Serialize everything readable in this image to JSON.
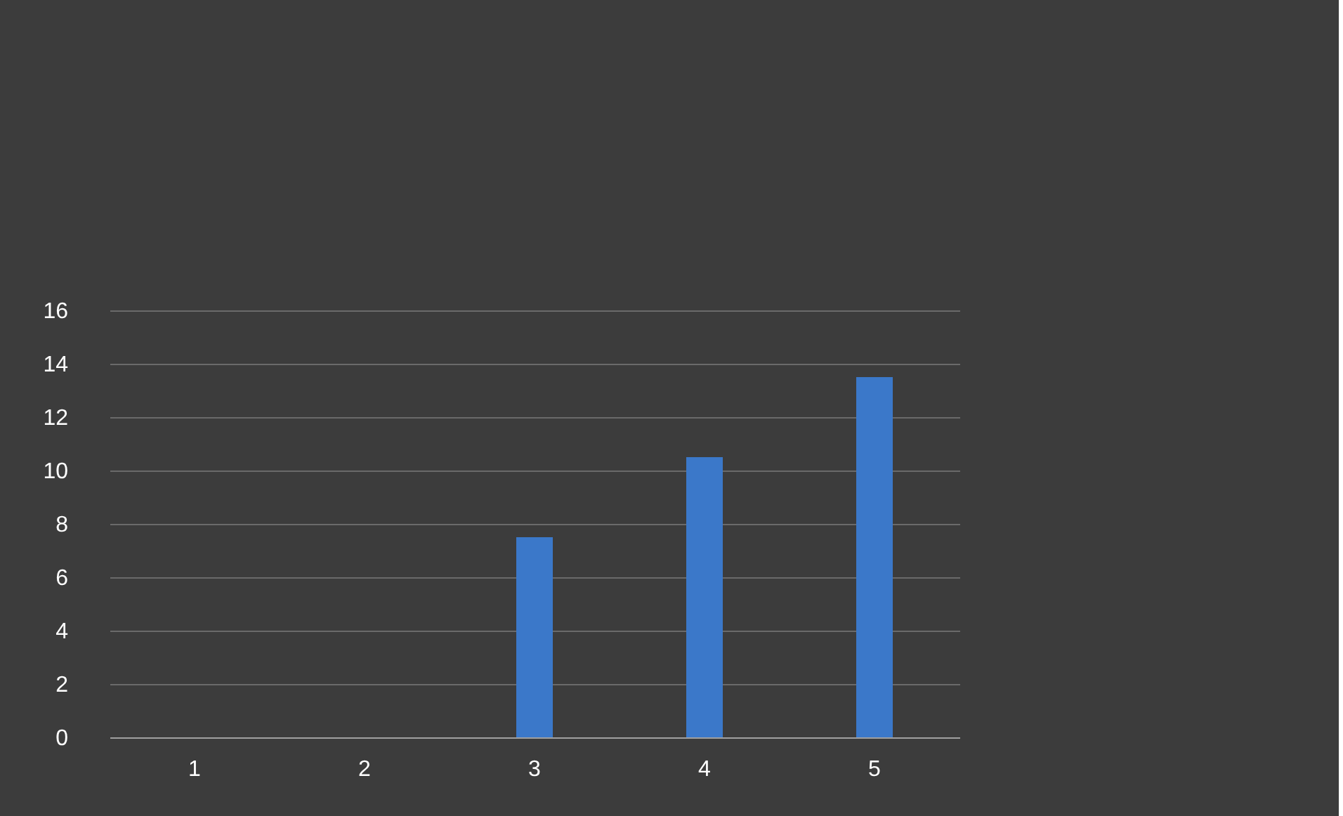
{
  "chart_data": {
    "type": "bar",
    "categories": [
      "1",
      "2",
      "3",
      "4",
      "5"
    ],
    "series": [
      {
        "color": "#3b78c9",
        "values": [
          null,
          null,
          7.5,
          10.5,
          13.5
        ]
      }
    ],
    "ylim": [
      0,
      16
    ],
    "yticks": [
      0,
      2,
      4,
      6,
      8,
      10,
      12,
      14,
      16
    ],
    "grid": "y",
    "legend": false
  }
}
